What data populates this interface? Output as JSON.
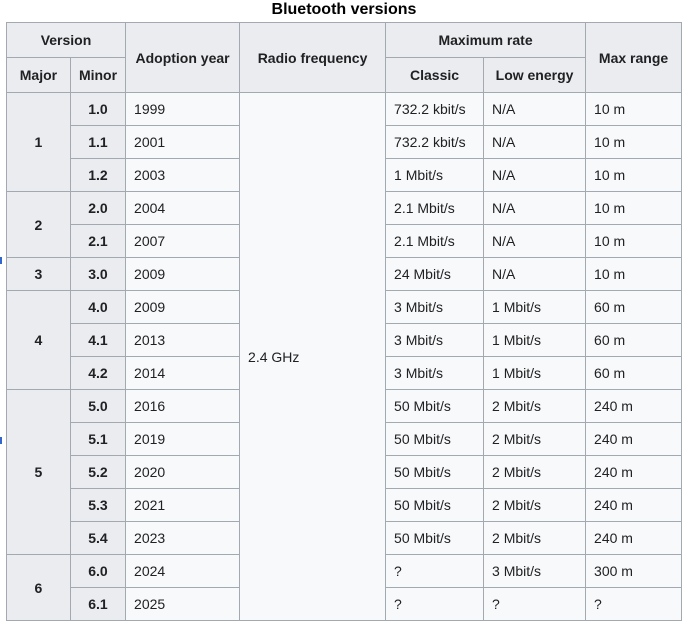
{
  "chart_data": {
    "type": "table",
    "title": "Bluetooth versions",
    "header_groups": [
      "Version",
      "Maximum rate"
    ],
    "columns": [
      "Major",
      "Minor",
      "Adoption year",
      "Radio frequency",
      "Classic",
      "Low energy",
      "Max range"
    ],
    "rows": [
      [
        "1",
        "1.0",
        "1999",
        "2.4 GHz",
        "732.2 kbit/s",
        "N/A",
        "10 m"
      ],
      [
        "1",
        "1.1",
        "2001",
        "2.4 GHz",
        "732.2 kbit/s",
        "N/A",
        "10 m"
      ],
      [
        "1",
        "1.2",
        "2003",
        "2.4 GHz",
        "1 Mbit/s",
        "N/A",
        "10 m"
      ],
      [
        "2",
        "2.0",
        "2004",
        "2.4 GHz",
        "2.1 Mbit/s",
        "N/A",
        "10 m"
      ],
      [
        "2",
        "2.1",
        "2007",
        "2.4 GHz",
        "2.1 Mbit/s",
        "N/A",
        "10 m"
      ],
      [
        "3",
        "3.0",
        "2009",
        "2.4 GHz",
        "24 Mbit/s",
        "N/A",
        "10 m"
      ],
      [
        "4",
        "4.0",
        "2009",
        "2.4 GHz",
        "3 Mbit/s",
        "1 Mbit/s",
        "60 m"
      ],
      [
        "4",
        "4.1",
        "2013",
        "2.4 GHz",
        "3 Mbit/s",
        "1 Mbit/s",
        "60 m"
      ],
      [
        "4",
        "4.2",
        "2014",
        "2.4 GHz",
        "3 Mbit/s",
        "1 Mbit/s",
        "60 m"
      ],
      [
        "5",
        "5.0",
        "2016",
        "2.4 GHz",
        "50 Mbit/s",
        "2 Mbit/s",
        "240 m"
      ],
      [
        "5",
        "5.1",
        "2019",
        "2.4 GHz",
        "50 Mbit/s",
        "2 Mbit/s",
        "240 m"
      ],
      [
        "5",
        "5.2",
        "2020",
        "2.4 GHz",
        "50 Mbit/s",
        "2 Mbit/s",
        "240 m"
      ],
      [
        "5",
        "5.3",
        "2021",
        "2.4 GHz",
        "50 Mbit/s",
        "2 Mbit/s",
        "240 m"
      ],
      [
        "5",
        "5.4",
        "2023",
        "2.4 GHz",
        "50 Mbit/s",
        "2 Mbit/s",
        "240 m"
      ],
      [
        "6",
        "6.0",
        "2024",
        "2.4 GHz",
        "?",
        "3 Mbit/s",
        "300 m"
      ],
      [
        "6",
        "6.1",
        "2025",
        "2.4 GHz",
        "?",
        "?",
        "?"
      ]
    ],
    "layout": {
      "radio_frequency_spans_all_rows": true,
      "classic_and_low_energy_are_subcolumns_of_maximum_rate": true,
      "major_version_cells_span_their_minor_rows": true
    }
  },
  "colors": {
    "header_bg": "#eaecf0",
    "cell_bg": "#f8f9fa",
    "border": "#a2a9b1",
    "page_bg": "#ffffff",
    "clipped_link_fragment": "#3366cc"
  }
}
